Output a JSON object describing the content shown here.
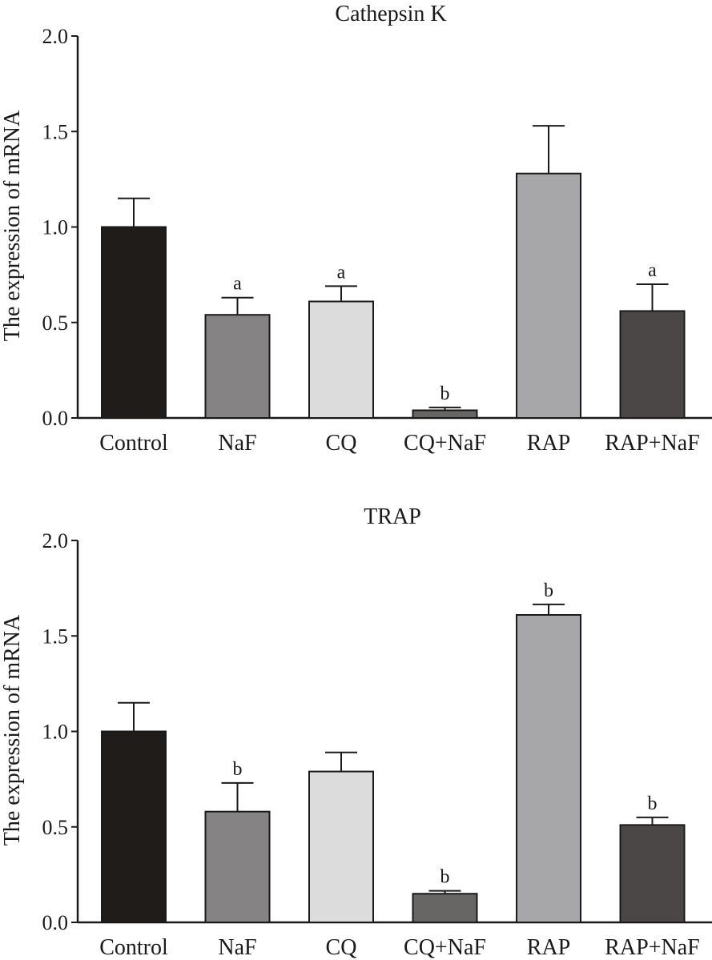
{
  "chart_data": [
    {
      "type": "bar",
      "title": "Cathepsin K",
      "ylabel": "The expression of mRNA",
      "xlabel": "",
      "ylim": [
        0,
        2.0
      ],
      "yticks": [
        "0.0",
        "0.5",
        "1.0",
        "1.5",
        "2.0"
      ],
      "categories": [
        "Control",
        "NaF",
        "CQ",
        "CQ+NaF",
        "RAP",
        "RAP+NaF"
      ],
      "values": [
        1.0,
        0.54,
        0.61,
        0.04,
        1.28,
        0.56
      ],
      "errors": [
        0.15,
        0.09,
        0.08,
        0.015,
        0.25,
        0.14
      ],
      "annotations": [
        "",
        "a",
        "a",
        "b",
        "",
        "a"
      ],
      "colors": [
        "#1f1c1a",
        "#858384",
        "#dcdcdc",
        "#676665",
        "#a7a6a8",
        "#4b4747"
      ],
      "grid": false,
      "legend": "none"
    },
    {
      "type": "bar",
      "title": "TRAP",
      "ylabel": "The expression of mRNA",
      "xlabel": "",
      "ylim": [
        0,
        2.0
      ],
      "yticks": [
        "0.0",
        "0.5",
        "1.0",
        "1.5",
        "2.0"
      ],
      "categories": [
        "Control",
        "NaF",
        "CQ",
        "CQ+NaF",
        "RAP",
        "RAP+NaF"
      ],
      "values": [
        1.0,
        0.58,
        0.79,
        0.15,
        1.61,
        0.51
      ],
      "errors": [
        0.15,
        0.15,
        0.1,
        0.015,
        0.055,
        0.04
      ],
      "annotations": [
        "",
        "b",
        "",
        "b",
        "b",
        "b"
      ],
      "colors": [
        "#1f1c1a",
        "#858384",
        "#dcdcdc",
        "#676665",
        "#a7a6a8",
        "#4b4747"
      ],
      "grid": false,
      "legend": "none"
    }
  ]
}
